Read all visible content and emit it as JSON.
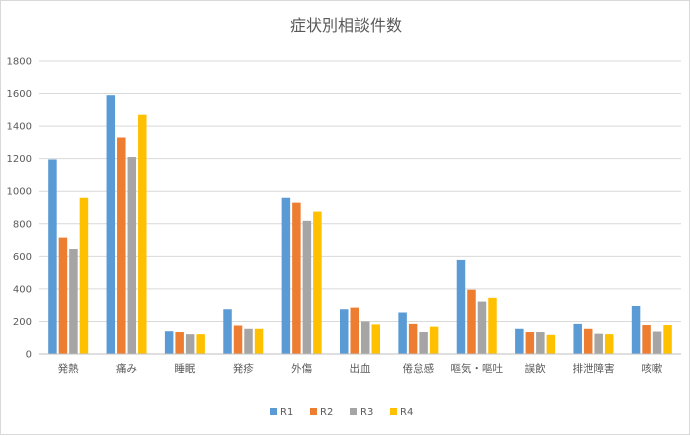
{
  "chart_data": {
    "type": "bar",
    "title": "症状別相談件数",
    "xlabel": "",
    "ylabel": "",
    "ylim": [
      0,
      1800
    ],
    "yticks": [
      0,
      200,
      400,
      600,
      800,
      1000,
      1200,
      1400,
      1600,
      1800
    ],
    "grid": true,
    "legend": "bottom",
    "categories": [
      "発熱",
      "痛み",
      "睡眠",
      "発疹",
      "外傷",
      "出血",
      "倦怠感",
      "嘔気・嘔吐",
      "誤飲",
      "排泄障害",
      "咳嗽"
    ],
    "series": [
      {
        "name": "R1",
        "color": "#5b9bd5",
        "values": [
          1195,
          1590,
          140,
          275,
          960,
          275,
          255,
          578,
          155,
          185,
          295
        ]
      },
      {
        "name": "R2",
        "color": "#ed7d31",
        "values": [
          715,
          1330,
          135,
          175,
          930,
          285,
          185,
          395,
          135,
          155,
          178
        ]
      },
      {
        "name": "R3",
        "color": "#a5a5a5",
        "values": [
          645,
          1210,
          122,
          155,
          818,
          200,
          135,
          322,
          135,
          125,
          138
        ]
      },
      {
        "name": "R4",
        "color": "#ffc000",
        "values": [
          960,
          1470,
          122,
          155,
          875,
          182,
          168,
          345,
          118,
          122,
          178
        ]
      }
    ]
  }
}
